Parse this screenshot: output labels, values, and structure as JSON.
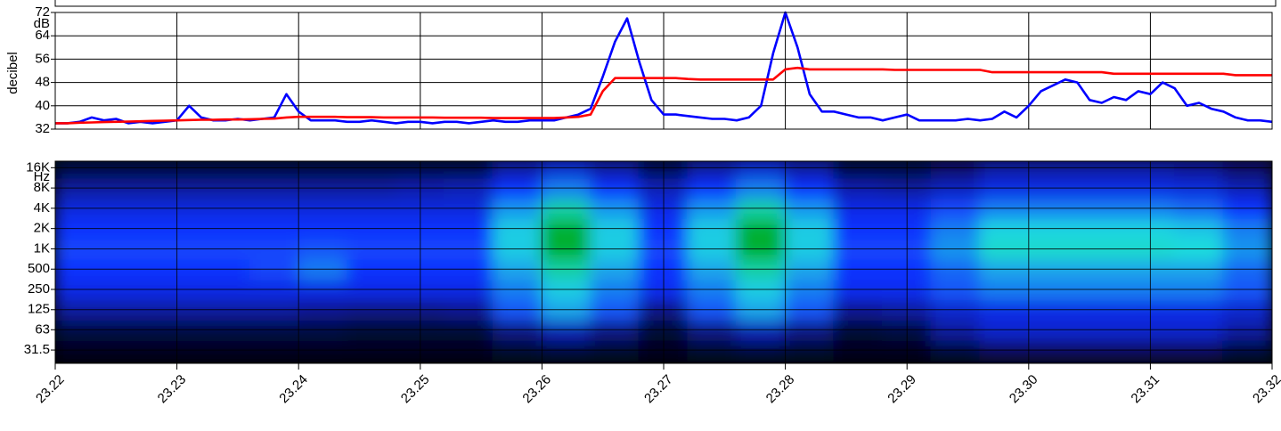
{
  "chart_data": [
    {
      "type": "line",
      "ylabel": "decibel",
      "y_unit": "dB",
      "xlim": [
        23.22,
        23.32
      ],
      "xticks": [
        23.22,
        23.23,
        23.24,
        23.25,
        23.26,
        23.27,
        23.28,
        23.29,
        {
          "value": 23.3,
          "label": "23.30"
        },
        23.31,
        23.32
      ],
      "ylim": [
        32,
        72
      ],
      "yticks": [
        32,
        40,
        48,
        56,
        64,
        72
      ],
      "grid": true,
      "x": [
        23.22,
        23.221,
        23.222,
        23.223,
        23.224,
        23.225,
        23.226,
        23.227,
        23.228,
        23.229,
        23.23,
        23.231,
        23.232,
        23.233,
        23.234,
        23.235,
        23.236,
        23.237,
        23.238,
        23.239,
        23.24,
        23.241,
        23.242,
        23.243,
        23.244,
        23.245,
        23.246,
        23.247,
        23.248,
        23.249,
        23.25,
        23.251,
        23.252,
        23.253,
        23.254,
        23.255,
        23.256,
        23.257,
        23.258,
        23.259,
        23.26,
        23.261,
        23.262,
        23.263,
        23.264,
        23.265,
        23.266,
        23.267,
        23.268,
        23.269,
        23.27,
        23.271,
        23.272,
        23.273,
        23.274,
        23.275,
        23.276,
        23.277,
        23.278,
        23.279,
        23.28,
        23.281,
        23.282,
        23.283,
        23.284,
        23.285,
        23.286,
        23.287,
        23.288,
        23.289,
        23.29,
        23.291,
        23.292,
        23.293,
        23.294,
        23.295,
        23.296,
        23.297,
        23.298,
        23.299,
        23.3,
        23.301,
        23.302,
        23.303,
        23.304,
        23.305,
        23.306,
        23.307,
        23.308,
        23.309,
        23.31,
        23.311,
        23.312,
        23.313,
        23.314,
        23.315,
        23.316,
        23.317,
        23.318,
        23.319,
        23.32
      ],
      "series": [
        {
          "color": "#0000ff",
          "values": [
            34,
            34,
            34.5,
            36,
            35,
            35.5,
            34,
            34.5,
            34,
            34.5,
            35,
            40,
            36,
            35,
            35,
            35.5,
            35,
            35.5,
            36,
            44,
            38,
            35,
            35,
            35,
            34.5,
            34.5,
            35,
            34.5,
            34,
            34.5,
            34.5,
            34,
            34.5,
            34.5,
            34,
            34.5,
            35,
            34.5,
            34.5,
            35,
            35,
            35,
            36,
            37,
            39,
            50,
            62,
            70,
            55,
            42,
            37,
            37,
            36.5,
            36,
            35.5,
            35.5,
            35,
            36,
            40,
            58,
            72,
            60,
            44,
            38,
            38,
            37,
            36,
            36,
            35,
            36,
            37,
            35,
            35,
            35,
            35,
            35.5,
            35,
            35.5,
            38,
            36,
            40,
            45,
            47,
            49,
            48,
            42,
            41,
            43,
            42,
            45,
            44,
            48,
            46,
            40,
            41,
            39,
            38,
            36,
            35,
            35,
            34.5
          ]
        },
        {
          "color": "#ff0000",
          "values": [
            34,
            34,
            34.2,
            34.3,
            34.4,
            34.5,
            34.6,
            34.7,
            34.8,
            34.9,
            35,
            35.1,
            35.2,
            35.2,
            35.3,
            35.3,
            35.4,
            35.5,
            35.6,
            36,
            36.2,
            36.2,
            36.2,
            36.2,
            36.1,
            36.1,
            36.1,
            36,
            36,
            36,
            36,
            36,
            35.9,
            35.9,
            35.9,
            35.9,
            35.8,
            35.8,
            35.8,
            35.8,
            35.8,
            35.8,
            36,
            36.2,
            37,
            45,
            49.5,
            49.5,
            49.5,
            49.5,
            49.5,
            49.5,
            49.2,
            49,
            49,
            49,
            49,
            49,
            49,
            49,
            52.5,
            53,
            52.5,
            52.5,
            52.5,
            52.5,
            52.5,
            52.5,
            52.5,
            52.3,
            52.3,
            52.3,
            52.3,
            52.3,
            52.3,
            52.3,
            52.3,
            51.5,
            51.5,
            51.5,
            51.5,
            51.5,
            51.5,
            51.5,
            51.5,
            51.5,
            51.5,
            51,
            51,
            51,
            51,
            51,
            51,
            51,
            51,
            51,
            51,
            50.5,
            50.5,
            50.5,
            50.5
          ]
        }
      ]
    },
    {
      "type": "heatmap",
      "y_unit": "Hz",
      "log_y": true,
      "grid": true,
      "xlim": [
        23.22,
        23.32
      ],
      "xticks": [
        23.22,
        23.23,
        23.24,
        23.25,
        23.26,
        23.27,
        23.28,
        23.29,
        {
          "value": 23.3,
          "label": "23.30"
        },
        23.31,
        23.32
      ],
      "ylim": [
        20,
        20000
      ],
      "yticks": [
        31.5,
        63,
        125,
        250,
        500,
        {
          "value": 1000,
          "label": "1K"
        },
        {
          "value": 2000,
          "label": "2K"
        },
        {
          "value": 4000,
          "label": "4K"
        },
        {
          "value": 8000,
          "label": "8K"
        },
        {
          "value": 16000,
          "label": "16K"
        }
      ],
      "x": [
        23.222,
        23.226,
        23.23,
        23.234,
        23.238,
        23.242,
        23.246,
        23.25,
        23.254,
        23.258,
        23.262,
        23.266,
        23.27,
        23.274,
        23.278,
        23.282,
        23.286,
        23.29,
        23.294,
        23.298,
        23.302,
        23.306,
        23.31,
        23.314,
        23.318
      ],
      "zlim": [
        0,
        90
      ],
      "colors": [
        "#000000",
        "#0a1a90",
        "#1030ff",
        "#20e0e0",
        "#00b030"
      ],
      "z": [
        [
          5,
          5,
          5,
          5,
          5,
          5,
          5,
          5,
          5,
          8,
          10,
          8,
          5,
          8,
          10,
          8,
          5,
          5,
          10,
          15,
          15,
          15,
          15,
          15,
          10
        ],
        [
          10,
          10,
          10,
          10,
          10,
          10,
          8,
          8,
          8,
          20,
          30,
          20,
          8,
          20,
          30,
          20,
          8,
          10,
          25,
          35,
          35,
          35,
          35,
          35,
          25
        ],
        [
          25,
          25,
          25,
          25,
          25,
          22,
          20,
          20,
          22,
          50,
          60,
          50,
          20,
          50,
          60,
          50,
          22,
          25,
          35,
          40,
          40,
          40,
          40,
          40,
          35
        ],
        [
          40,
          40,
          40,
          40,
          40,
          40,
          40,
          40,
          40,
          55,
          65,
          55,
          42,
          55,
          65,
          55,
          42,
          42,
          50,
          55,
          55,
          55,
          55,
          55,
          50
        ],
        [
          45,
          45,
          45,
          45,
          48,
          55,
          45,
          45,
          45,
          60,
          75,
          60,
          45,
          60,
          75,
          60,
          45,
          45,
          52,
          60,
          60,
          60,
          60,
          60,
          52
        ],
        [
          48,
          48,
          48,
          48,
          48,
          50,
          48,
          48,
          48,
          65,
          90,
          65,
          48,
          65,
          90,
          65,
          48,
          48,
          58,
          70,
          70,
          70,
          70,
          68,
          58
        ],
        [
          45,
          45,
          45,
          45,
          45,
          45,
          45,
          45,
          45,
          65,
          90,
          65,
          45,
          65,
          90,
          65,
          45,
          45,
          55,
          66,
          66,
          66,
          66,
          64,
          55
        ],
        [
          38,
          38,
          38,
          38,
          38,
          38,
          38,
          38,
          38,
          58,
          75,
          58,
          40,
          58,
          75,
          58,
          40,
          40,
          48,
          55,
          55,
          55,
          55,
          52,
          45
        ],
        [
          25,
          25,
          25,
          25,
          25,
          25,
          25,
          28,
          30,
          45,
          55,
          45,
          30,
          45,
          55,
          45,
          28,
          25,
          32,
          40,
          40,
          40,
          40,
          38,
          30
        ],
        [
          10,
          10,
          10,
          10,
          10,
          10,
          10,
          10,
          10,
          25,
          35,
          25,
          12,
          25,
          35,
          25,
          10,
          10,
          15,
          25,
          25,
          25,
          25,
          22,
          15
        ]
      ]
    }
  ]
}
